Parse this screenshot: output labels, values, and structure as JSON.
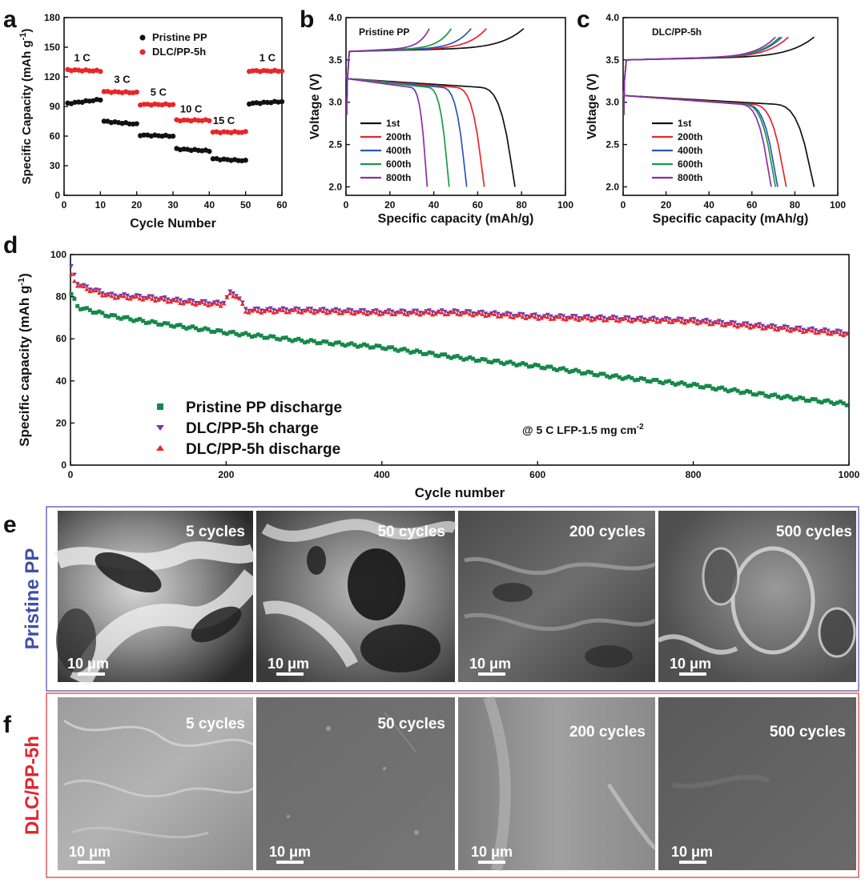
{
  "panels": {
    "a": "a",
    "b": "b",
    "c": "c",
    "d": "d",
    "e": "e",
    "f": "f"
  },
  "colors": {
    "black": "#111111",
    "red": "#e8262a",
    "blue": "#2a57b8",
    "green": "#1a9a4a",
    "purple": "#8b2fa8",
    "green_d": "#16884a",
    "red_d": "#e8262a",
    "purple_d": "#7a3aa5",
    "frame_e": "#6a6fb3",
    "frame_f": "#e05a60"
  },
  "chart_data": [
    {
      "id": "a",
      "type": "scatter",
      "xlabel": "Cycle Number",
      "ylabel": "Specific Capacity (mAh g",
      "ylabel_sup": "-1",
      "ylabel_close": ")",
      "xlim": [
        0,
        60
      ],
      "ylim": [
        0,
        180
      ],
      "xticks": [
        0,
        10,
        20,
        30,
        40,
        50,
        60
      ],
      "yticks": [
        0,
        30,
        60,
        90,
        120,
        150,
        180
      ],
      "legend": [
        "Pristine PP",
        "DLC/PP-5h"
      ],
      "rate_labels": [
        {
          "text": "1 C",
          "x": 5,
          "y": 136
        },
        {
          "text": "3 C",
          "x": 16,
          "y": 114
        },
        {
          "text": "5 C",
          "x": 26,
          "y": 101
        },
        {
          "text": "10 C",
          "x": 35,
          "y": 84
        },
        {
          "text": "15 C",
          "x": 44,
          "y": 72
        },
        {
          "text": "1 C",
          "x": 56,
          "y": 136
        }
      ],
      "series": [
        {
          "name": "Pristine PP",
          "segments": [
            {
              "x0": 1,
              "x1": 10,
              "y0": 93,
              "y1": 97
            },
            {
              "x0": 11,
              "x1": 20,
              "y0": 75,
              "y1": 72
            },
            {
              "x0": 21,
              "x1": 30,
              "y0": 61,
              "y1": 60
            },
            {
              "x0": 31,
              "x1": 40,
              "y0": 47,
              "y1": 45
            },
            {
              "x0": 41,
              "x1": 50,
              "y0": 37,
              "y1": 35
            },
            {
              "x0": 51,
              "x1": 60,
              "y0": 93,
              "y1": 95
            }
          ]
        },
        {
          "name": "DLC/PP-5h",
          "segments": [
            {
              "x0": 1,
              "x1": 10,
              "y0": 127,
              "y1": 126
            },
            {
              "x0": 11,
              "x1": 20,
              "y0": 105,
              "y1": 104
            },
            {
              "x0": 21,
              "x1": 30,
              "y0": 92,
              "y1": 92
            },
            {
              "x0": 31,
              "x1": 40,
              "y0": 76,
              "y1": 76
            },
            {
              "x0": 41,
              "x1": 50,
              "y0": 64,
              "y1": 64
            },
            {
              "x0": 51,
              "x1": 60,
              "y0": 126,
              "y1": 126
            }
          ]
        }
      ]
    },
    {
      "id": "b",
      "type": "line",
      "title": "Pristine PP",
      "xlabel": "Specific capacity (mAh/g)",
      "ylabel": "Voltage (V)",
      "xlim": [
        0,
        100
      ],
      "ylim": [
        1.9,
        4.0
      ],
      "xticks": [
        0,
        20,
        40,
        60,
        80,
        100
      ],
      "yticks": [
        2.0,
        2.5,
        3.0,
        3.5,
        4.0
      ],
      "series": [
        {
          "name": "1st",
          "charge_end": 81,
          "discharge_end": 77
        },
        {
          "name": "200th",
          "charge_end": 64,
          "discharge_end": 63
        },
        {
          "name": "400th",
          "charge_end": 57,
          "discharge_end": 55
        },
        {
          "name": "600th",
          "charge_end": 48,
          "discharge_end": 47
        },
        {
          "name": "800th",
          "charge_end": 38,
          "discharge_end": 37
        }
      ]
    },
    {
      "id": "c",
      "type": "line",
      "title": "DLC/PP-5h",
      "xlabel": "Specific capacity (mAh/g)",
      "ylabel": "Voltage (V)",
      "xlim": [
        0,
        100
      ],
      "ylim": [
        1.9,
        4.0
      ],
      "xticks": [
        0,
        20,
        40,
        60,
        80,
        100
      ],
      "yticks": [
        2.0,
        2.5,
        3.0,
        3.5,
        4.0
      ],
      "series": [
        {
          "name": "1st",
          "charge_end": 89,
          "discharge_end": 89
        },
        {
          "name": "200th",
          "charge_end": 77,
          "discharge_end": 76
        },
        {
          "name": "400th",
          "charge_end": 74,
          "discharge_end": 72
        },
        {
          "name": "600th",
          "charge_end": 73,
          "discharge_end": 71
        },
        {
          "name": "800th",
          "charge_end": 71,
          "discharge_end": 69
        }
      ]
    },
    {
      "id": "d",
      "type": "scatter",
      "xlabel": "Cycle number",
      "ylabel": "Specific capacity (mAh g",
      "ylabel_sup": "-1",
      "ylabel_close": ")",
      "xlim": [
        0,
        1000
      ],
      "ylim": [
        0,
        100
      ],
      "xticks": [
        0,
        200,
        400,
        600,
        800,
        1000
      ],
      "yticks": [
        0,
        20,
        40,
        60,
        80,
        100
      ],
      "annotation": "@ 5 C LFP-1.5 mg cm",
      "annotation_sup": "-2",
      "series": [
        {
          "name": "Pristine PP discharge",
          "points": [
            [
              1,
              81
            ],
            [
              10,
              75
            ],
            [
              50,
              71
            ],
            [
              100,
              68
            ],
            [
              200,
              63
            ],
            [
              300,
              59
            ],
            [
              400,
              56
            ],
            [
              500,
              51
            ],
            [
              600,
              47
            ],
            [
              700,
              42
            ],
            [
              800,
              38
            ],
            [
              900,
              33
            ],
            [
              1000,
              29
            ]
          ]
        },
        {
          "name": "DLC/PP-5h charge",
          "points": [
            [
              1,
              94
            ],
            [
              10,
              86
            ],
            [
              50,
              81
            ],
            [
              100,
              80
            ],
            [
              150,
              78
            ],
            [
              195,
              77
            ],
            [
              205,
              82
            ],
            [
              215,
              81
            ],
            [
              225,
              74
            ],
            [
              300,
              74
            ],
            [
              400,
              73
            ],
            [
              500,
              73
            ],
            [
              600,
              71
            ],
            [
              700,
              70
            ],
            [
              800,
              69
            ],
            [
              900,
              66
            ],
            [
              1000,
              63
            ]
          ]
        },
        {
          "name": "DLC/PP-5h discharge",
          "points": [
            [
              1,
              90
            ],
            [
              10,
              85
            ],
            [
              50,
              80
            ],
            [
              100,
              79
            ],
            [
              150,
              77
            ],
            [
              195,
              76
            ],
            [
              205,
              81
            ],
            [
              215,
              80
            ],
            [
              225,
              73
            ],
            [
              300,
              73
            ],
            [
              400,
              72
            ],
            [
              500,
              72
            ],
            [
              600,
              70
            ],
            [
              700,
              69
            ],
            [
              800,
              68
            ],
            [
              900,
              65
            ],
            [
              1000,
              62
            ]
          ]
        }
      ]
    }
  ],
  "sem": {
    "row_e_label_part1": "Pristine",
    "row_e_label_part2": "PP",
    "row_f_label": "DLC/PP-5h",
    "scale": "10 μm",
    "cycles": [
      "5 cycles",
      "50 cycles",
      "200 cycles",
      "500 cycles"
    ]
  }
}
